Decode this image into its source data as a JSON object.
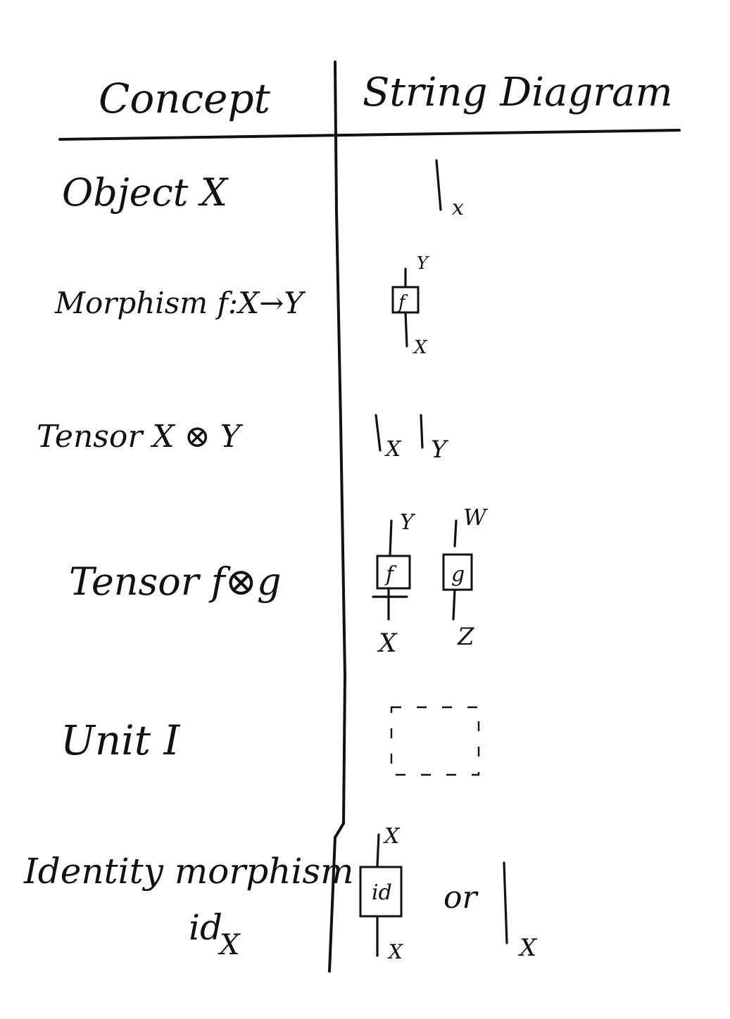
{
  "header": {
    "concept": "Concept",
    "diagram": "String Diagram"
  },
  "rows": [
    {
      "concept": "Object  X",
      "labels": [
        "x"
      ]
    },
    {
      "concept": "Morphism f:X→Y",
      "labels": [
        "Y",
        "f",
        "X"
      ]
    },
    {
      "concept": "Tensor  X ⊗ Y",
      "labels": [
        "X",
        "Y"
      ]
    },
    {
      "concept": "Tensor f⊗g",
      "labels": [
        "Y",
        "W",
        "f",
        "g",
        "X",
        "Z"
      ]
    },
    {
      "concept": "Unit   I",
      "labels": []
    },
    {
      "concept_line1": "Identity morphism",
      "concept_line2": "id",
      "concept_sub": "X",
      "labels": [
        "X",
        "id",
        "X"
      ],
      "or": "or",
      "alt_label": "X"
    }
  ]
}
